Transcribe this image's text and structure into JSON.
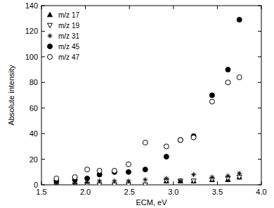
{
  "chart_data": {
    "type": "scatter",
    "x_label": "ECM, eV",
    "y_label": "Absolute intensity",
    "x": [
      1.67,
      1.88,
      2.02,
      2.16,
      2.33,
      2.49,
      2.68,
      2.92,
      3.08,
      3.23,
      3.44,
      3.62,
      3.75
    ],
    "series": [
      {
        "name": "m/z 17",
        "color": "#000000",
        "marker": "triangle-filled",
        "values": [
          0,
          0,
          0,
          0,
          0,
          0,
          0,
          3,
          3,
          3,
          4,
          4,
          6
        ]
      },
      {
        "name": "m/z 19",
        "color": "#000000",
        "marker": "triangle-down-open",
        "values": [
          0,
          0,
          0,
          0,
          0,
          0,
          0,
          3,
          3,
          3,
          4,
          5,
          6
        ]
      },
      {
        "name": "m/z 31",
        "color": "#000000",
        "marker": "star",
        "values": [
          0,
          1,
          2,
          3,
          3,
          3,
          4,
          5,
          3,
          8,
          6,
          7,
          9
        ]
      },
      {
        "name": "m/z 45",
        "color": "#000000",
        "marker": "circle-filled",
        "values": [
          3,
          4,
          5,
          8,
          10,
          10,
          12,
          22,
          35,
          38,
          70,
          90,
          129
        ]
      },
      {
        "name": "m/z 47",
        "color": "#000000",
        "marker": "circle-open",
        "values": [
          5,
          6,
          12,
          11,
          11,
          16,
          33,
          30,
          35,
          37,
          65,
          80,
          84
        ]
      }
    ],
    "xlim": [
      1.5,
      4.0
    ],
    "xticks": [
      1.5,
      {
        "value": 2,
        "label": "2.0"
      },
      2.5,
      {
        "value": 3,
        "label": "3.0"
      },
      3.5,
      {
        "value": 4,
        "label": "4.0"
      }
    ],
    "ylim": [
      0,
      140
    ],
    "yticks": [
      0,
      20,
      40,
      60,
      80,
      100,
      120,
      140
    ],
    "grid": false,
    "legend": "top-left"
  }
}
